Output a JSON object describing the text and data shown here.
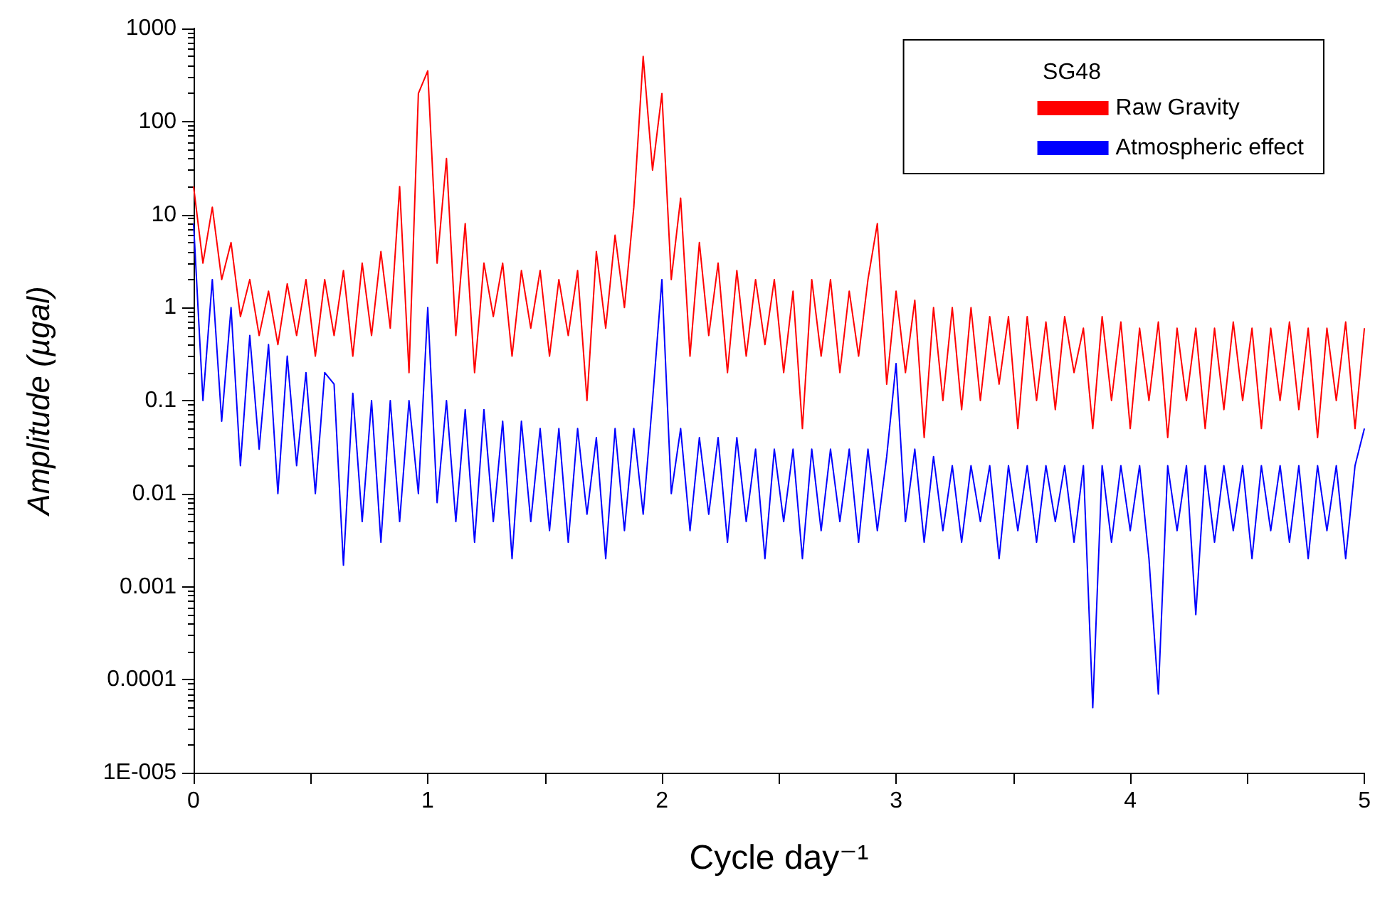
{
  "chart_data": {
    "type": "line",
    "xlabel": "Cycle day⁻¹",
    "ylabel": "Amplitude (µgal)",
    "legend_title": "SG48",
    "legend": "top right",
    "log": "y",
    "grid": false,
    "marker": "none",
    "line_style": "solid",
    "xlim": [
      0,
      5
    ],
    "xticks": [
      0,
      {
        "value": 0.5,
        "label": null
      },
      1,
      {
        "value": 1.5,
        "label": null
      },
      2,
      {
        "value": 2.5,
        "label": null
      },
      3,
      {
        "value": 3.5,
        "label": null
      },
      4,
      {
        "value": 4.5,
        "label": null
      },
      5
    ],
    "ylim": [
      1e-05,
      1000
    ],
    "yticks": [
      {
        "value": 1e-05,
        "label": "1E-005"
      },
      0.0001,
      0.001,
      0.01,
      0.1,
      1,
      10,
      100,
      1000
    ],
    "x": [
      0,
      0.04,
      0.08,
      0.12,
      0.16,
      0.2,
      0.24,
      0.28,
      0.32,
      0.36,
      0.4,
      0.44,
      0.48,
      0.52,
      0.56,
      0.6,
      0.64,
      0.68,
      0.72,
      0.76,
      0.8,
      0.84,
      0.88,
      0.92,
      0.96,
      1,
      1.04,
      1.08,
      1.12,
      1.16,
      1.2,
      1.24,
      1.28,
      1.32,
      1.36,
      1.4,
      1.44,
      1.48,
      1.52,
      1.56,
      1.6,
      1.64,
      1.68,
      1.72,
      1.76,
      1.8,
      1.84,
      1.88,
      1.92,
      1.96,
      2,
      2.04,
      2.08,
      2.12,
      2.16,
      2.2,
      2.24,
      2.28,
      2.32,
      2.36,
      2.4,
      2.44,
      2.48,
      2.52,
      2.56,
      2.6,
      2.64,
      2.68,
      2.72,
      2.76,
      2.8,
      2.84,
      2.88,
      2.92,
      2.96,
      3,
      3.04,
      3.08,
      3.12,
      3.16,
      3.2,
      3.24,
      3.28,
      3.32,
      3.36,
      3.4,
      3.44,
      3.48,
      3.52,
      3.56,
      3.6,
      3.64,
      3.68,
      3.72,
      3.76,
      3.8,
      3.84,
      3.88,
      3.92,
      3.96,
      4,
      4.04,
      4.08,
      4.12,
      4.16,
      4.2,
      4.24,
      4.28,
      4.32,
      4.36,
      4.4,
      4.44,
      4.48,
      4.52,
      4.56,
      4.6,
      4.64,
      4.68,
      4.72,
      4.76,
      4.8,
      4.84,
      4.88,
      4.92,
      4.96,
      5
    ],
    "series": [
      {
        "name": "Raw Gravity",
        "color": "#ff0000",
        "values": [
          20,
          3,
          12,
          2,
          5,
          0.8,
          2,
          0.5,
          1.5,
          0.4,
          1.8,
          0.5,
          2,
          0.3,
          2,
          0.5,
          2.5,
          0.3,
          3,
          0.5,
          4,
          0.6,
          20,
          0.2,
          200,
          350,
          3,
          40,
          0.5,
          8,
          0.2,
          3,
          0.8,
          3,
          0.3,
          2.5,
          0.6,
          2.5,
          0.3,
          2,
          0.5,
          2.5,
          0.1,
          4,
          0.6,
          6,
          1,
          12,
          500,
          30,
          200,
          2,
          15,
          0.3,
          5,
          0.5,
          3,
          0.2,
          2.5,
          0.3,
          2,
          0.4,
          2,
          0.2,
          1.5,
          0.05,
          2,
          0.3,
          2,
          0.2,
          1.5,
          0.3,
          2,
          8,
          0.15,
          1.5,
          0.2,
          1.2,
          0.04,
          1,
          0.1,
          1,
          0.08,
          1,
          0.1,
          0.8,
          0.15,
          0.8,
          0.05,
          0.8,
          0.1,
          0.7,
          0.08,
          0.8,
          0.2,
          0.6,
          0.05,
          0.8,
          0.1,
          0.7,
          0.05,
          0.6,
          0.1,
          0.7,
          0.04,
          0.6,
          0.1,
          0.6,
          0.05,
          0.6,
          0.08,
          0.7,
          0.1,
          0.6,
          0.05,
          0.6,
          0.1,
          0.7,
          0.08,
          0.6,
          0.04,
          0.6,
          0.1,
          0.7,
          0.05,
          0.6
        ]
      },
      {
        "name": "Atmospheric effect",
        "color": "#0000ff",
        "values": [
          8,
          0.1,
          2,
          0.06,
          1,
          0.02,
          0.5,
          0.03,
          0.4,
          0.01,
          0.3,
          0.02,
          0.2,
          0.01,
          0.2,
          0.15,
          0.0017,
          0.12,
          0.005,
          0.1,
          0.003,
          0.1,
          0.005,
          0.1,
          0.01,
          1,
          0.008,
          0.1,
          0.005,
          0.08,
          0.003,
          0.08,
          0.005,
          0.06,
          0.002,
          0.06,
          0.005,
          0.05,
          0.004,
          0.05,
          0.003,
          0.05,
          0.006,
          0.04,
          0.002,
          0.05,
          0.004,
          0.05,
          0.006,
          0.1,
          2,
          0.01,
          0.05,
          0.004,
          0.04,
          0.006,
          0.04,
          0.003,
          0.04,
          0.005,
          0.03,
          0.002,
          0.03,
          0.005,
          0.03,
          0.002,
          0.03,
          0.004,
          0.03,
          0.005,
          0.03,
          0.003,
          0.03,
          0.004,
          0.025,
          0.25,
          0.005,
          0.03,
          0.003,
          0.025,
          0.004,
          0.02,
          0.003,
          0.02,
          0.005,
          0.02,
          0.002,
          0.02,
          0.004,
          0.02,
          0.003,
          0.02,
          0.005,
          0.02,
          0.003,
          0.02,
          5e-05,
          0.02,
          0.003,
          0.02,
          0.004,
          0.02,
          0.002,
          7e-05,
          0.02,
          0.004,
          0.02,
          0.0005,
          0.02,
          0.003,
          0.02,
          0.004,
          0.02,
          0.002,
          0.02,
          0.004,
          0.02,
          0.003,
          0.02,
          0.002,
          0.02,
          0.004,
          0.02,
          0.002,
          0.02,
          0.05
        ]
      }
    ]
  }
}
